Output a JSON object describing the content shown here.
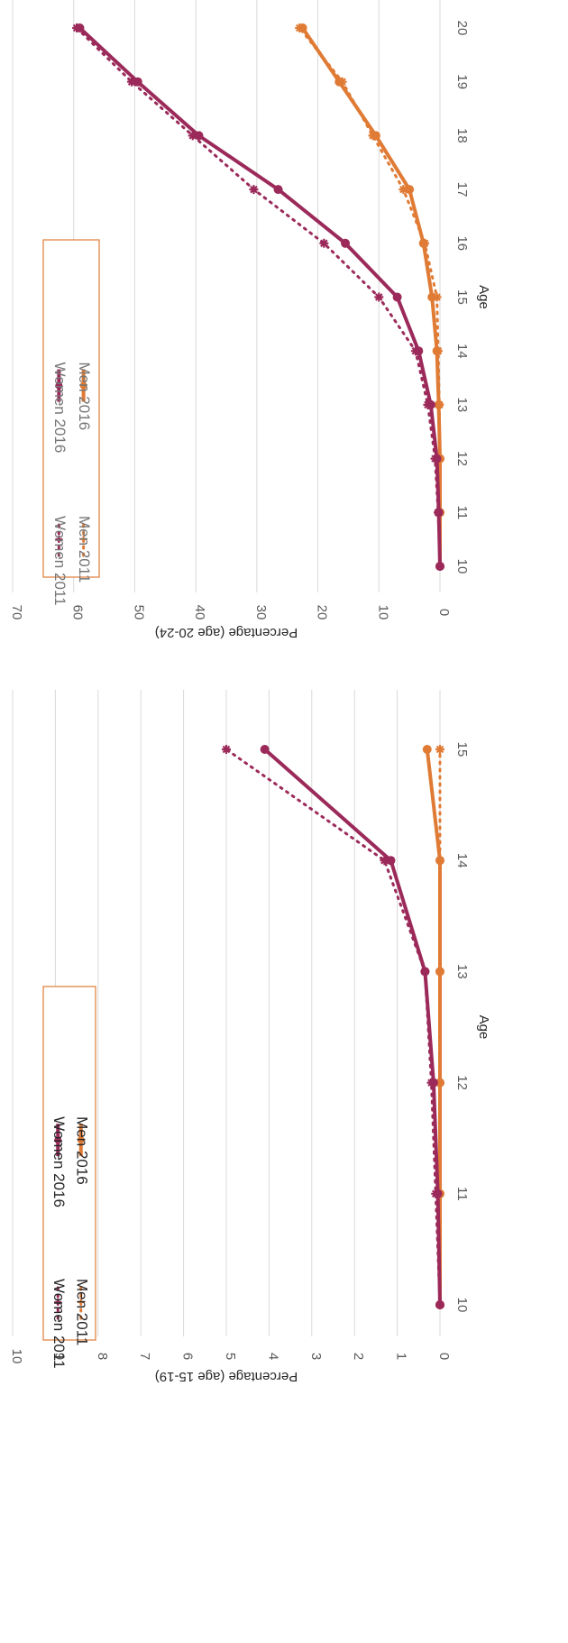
{
  "chart_data": [
    {
      "type": "line",
      "xlabel": "Age",
      "ylabel": "Percentage (age 15-19)",
      "x": [
        10,
        11,
        12,
        13,
        14,
        15
      ],
      "ylim": [
        0,
        10
      ],
      "yticks": [
        0,
        1,
        2,
        3,
        4,
        5,
        6,
        7,
        8,
        9,
        10
      ],
      "grid": true,
      "legend_position": "inside-top-left",
      "series": [
        {
          "name": "Women 2011",
          "values": [
            0.0,
            0.1,
            0.2,
            0.35,
            1.3,
            5.0
          ],
          "color": "#9b2a5a",
          "style": "dotted"
        },
        {
          "name": "Women 2016",
          "values": [
            0.0,
            0.05,
            0.15,
            0.35,
            1.15,
            4.1
          ],
          "color": "#9b2a5a",
          "style": "solid"
        },
        {
          "name": "Men 2011",
          "values": [
            0.0,
            0.0,
            0.0,
            0.0,
            0.0,
            0.0
          ],
          "color": "#e07b35",
          "style": "dotted"
        },
        {
          "name": "Men 2016",
          "values": [
            0.0,
            0.0,
            0.0,
            0.0,
            0.0,
            0.3
          ],
          "color": "#e07b35",
          "style": "solid"
        }
      ]
    },
    {
      "type": "line",
      "xlabel": "Age",
      "ylabel": "Percentage (age 20-24)",
      "x": [
        10,
        11,
        12,
        13,
        14,
        15,
        16,
        17,
        18,
        19,
        20
      ],
      "ylim": [
        0,
        70
      ],
      "yticks": [
        0,
        10,
        20,
        30,
        40,
        50,
        60,
        70
      ],
      "grid": true,
      "legend_position": "inside-top-left",
      "series": [
        {
          "name": "Women 2011",
          "values": [
            0,
            0.3,
            0.8,
            2.0,
            4.0,
            10.0,
            19.0,
            30.5,
            40.5,
            50.5,
            59.5
          ],
          "color": "#9b2a5a",
          "style": "dotted"
        },
        {
          "name": "Women 2016",
          "values": [
            0,
            0.2,
            0.5,
            1.5,
            3.5,
            7.0,
            15.5,
            26.5,
            39.5,
            49.5,
            59.0
          ],
          "color": "#9b2a5a",
          "style": "solid"
        },
        {
          "name": "Men 2011",
          "values": [
            0,
            0,
            0,
            0.1,
            0.3,
            0.5,
            2.5,
            6.0,
            11.0,
            16.0,
            23.0
          ],
          "color": "#e07b35",
          "style": "dotted"
        },
        {
          "name": "Men 2016",
          "values": [
            0,
            0,
            0,
            0.2,
            0.5,
            1.3,
            2.7,
            5.0,
            10.5,
            16.5,
            22.5
          ],
          "color": "#e07b35",
          "style": "solid"
        }
      ]
    }
  ]
}
